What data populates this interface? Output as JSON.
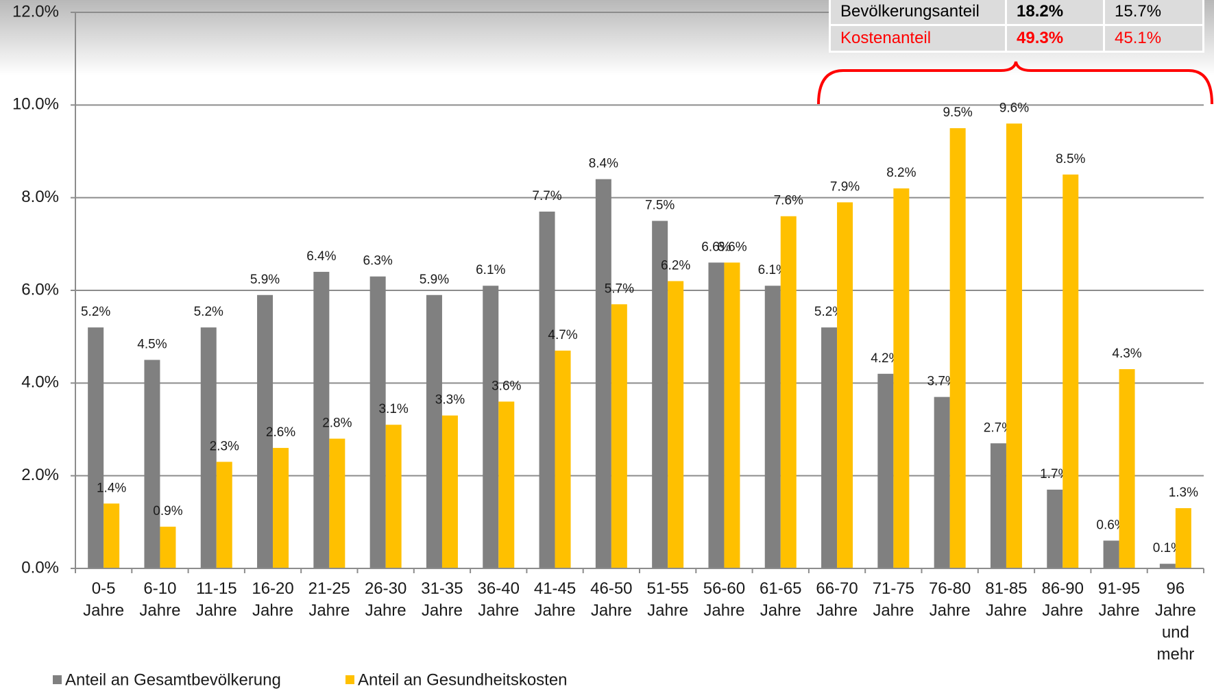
{
  "chart_data": {
    "type": "bar",
    "categories": [
      "0-5 Jahre",
      "6-10 Jahre",
      "11-15 Jahre",
      "16-20 Jahre",
      "21-25 Jahre",
      "26-30 Jahre",
      "31-35 Jahre",
      "36-40 Jahre",
      "41-45 Jahre",
      "46-50 Jahre",
      "51-55 Jahre",
      "56-60 Jahre",
      "61-65 Jahre",
      "66-70 Jahre",
      "71-75 Jahre",
      "76-80 Jahre",
      "81-85 Jahre",
      "86-90 Jahre",
      "91-95 Jahre",
      "96 Jahre und mehr"
    ],
    "series": [
      {
        "name": "Anteil an Gesamtbevölkerung",
        "color": "#808080",
        "values": [
          5.2,
          4.5,
          5.2,
          5.9,
          6.4,
          6.3,
          5.9,
          6.1,
          7.7,
          8.4,
          7.5,
          6.6,
          6.1,
          5.2,
          4.2,
          3.7,
          2.7,
          1.7,
          0.6,
          0.1
        ],
        "value_labels": [
          "5.2%",
          "4.5%",
          "5.2%",
          "5.9%",
          "6.4%",
          "6.3%",
          "5.9%",
          "6.1%",
          "7.7%",
          "8.4%",
          "7.5%",
          "6.6%",
          "6.1%",
          "5.2%",
          "4.2%",
          "3.7%",
          "2.7%",
          "1.7%",
          "0.6%",
          "0.1%"
        ]
      },
      {
        "name": "Anteil an Gesundheitskosten",
        "color": "#ffc000",
        "values": [
          1.4,
          0.9,
          2.3,
          2.6,
          2.8,
          3.1,
          3.3,
          3.6,
          4.7,
          5.7,
          6.2,
          6.6,
          7.6,
          7.9,
          8.2,
          9.5,
          9.6,
          8.5,
          4.3,
          1.3
        ],
        "value_labels": [
          "1.4%",
          "0.9%",
          "2.3%",
          "2.6%",
          "2.8%",
          "3.1%",
          "3.3%",
          "3.6%",
          "4.7%",
          "5.7%",
          "6.2%",
          "6.6%",
          "7.6%",
          "7.9%",
          "8.2%",
          "9.5%",
          "9.6%",
          "8.5%",
          "4.3%",
          "1.3%"
        ]
      }
    ],
    "ylim": [
      0,
      12
    ],
    "yticks": [
      {
        "value": 0,
        "label": "0.0%"
      },
      {
        "value": 2,
        "label": "2.0%"
      },
      {
        "value": 4,
        "label": "4.0%"
      },
      {
        "value": 6,
        "label": "6.0%"
      },
      {
        "value": 8,
        "label": "8.0%"
      },
      {
        "value": 10,
        "label": "10.0%"
      },
      {
        "value": 12,
        "label": "12.0%"
      }
    ],
    "grid": true,
    "legend": "bottom"
  },
  "table": {
    "rows": [
      [
        "Bevölkerungsanteil",
        "18.2%",
        "15.7%"
      ],
      [
        "Kostenanteil",
        "49.3%",
        "45.1%"
      ]
    ]
  }
}
